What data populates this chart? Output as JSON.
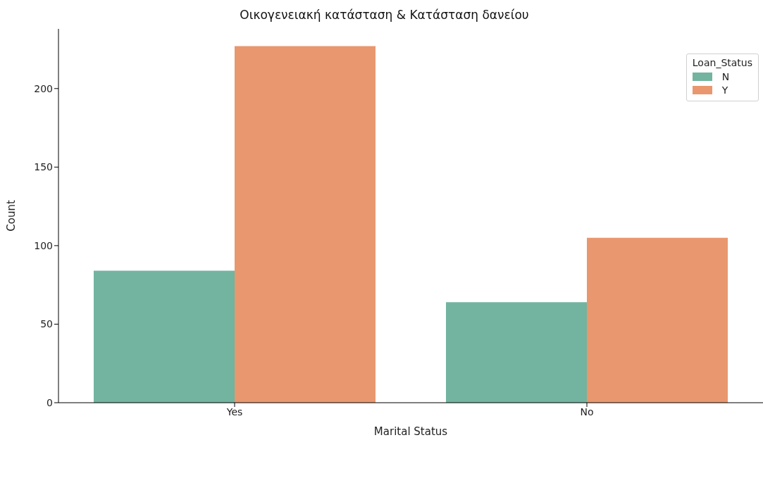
{
  "chart_data": {
    "type": "bar",
    "title": "Οικογενειακή κατάσταση & Κατάσταση δανείου",
    "xlabel": "Marital Status",
    "ylabel": "Count",
    "legend_title": "Loan_Status",
    "categories": [
      "Yes",
      "No"
    ],
    "series": [
      {
        "name": "N",
        "color": "#73b4a0",
        "values": [
          84,
          64
        ]
      },
      {
        "name": "Y",
        "color": "#e9976f",
        "values": [
          227,
          105
        ]
      }
    ],
    "ylim": [
      0,
      238
    ],
    "yticks": [
      0,
      50,
      100,
      150,
      200
    ],
    "grid": false,
    "legend": "top right"
  }
}
